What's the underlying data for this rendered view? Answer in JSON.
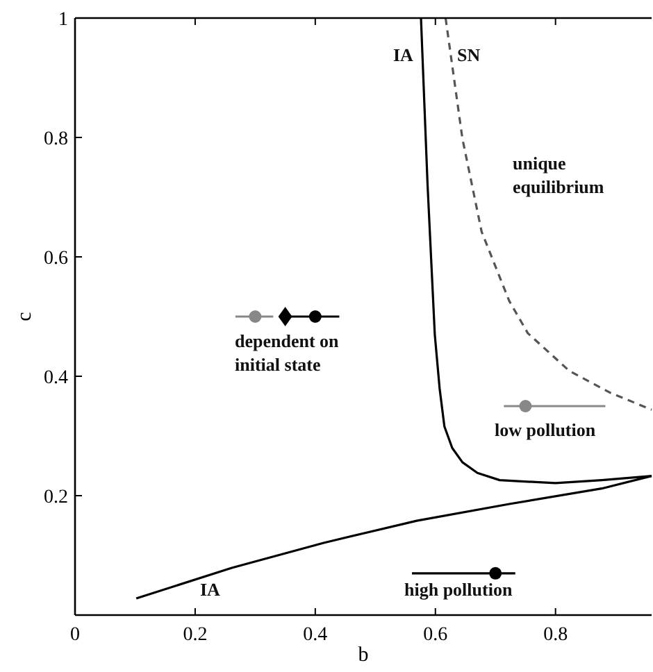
{
  "chart_data": {
    "type": "line",
    "xlabel": "b",
    "ylabel": "c",
    "xlim": [
      0,
      0.96
    ],
    "ylim": [
      0,
      1
    ],
    "xticks": [
      0,
      0.2,
      0.4,
      0.6,
      0.8
    ],
    "yticks": [
      0.2,
      0.4,
      0.6,
      0.8,
      1
    ],
    "series": [
      {
        "color": "#000000",
        "line_style": "solid",
        "x": [
          0.576,
          0.587,
          0.599,
          0.607,
          0.615,
          0.628,
          0.645,
          0.67,
          0.707,
          0.8,
          0.877,
          0.96
        ],
        "values": [
          1.0,
          0.72,
          0.47,
          0.38,
          0.316,
          0.28,
          0.256,
          0.238,
          0.226,
          0.221,
          0.226,
          0.233
        ]
      },
      {
        "color": "#000000",
        "line_style": "solid",
        "x": [
          0.102,
          0.261,
          0.414,
          0.569,
          0.723,
          0.877,
          0.96
        ],
        "values": [
          0.028,
          0.079,
          0.121,
          0.158,
          0.186,
          0.212,
          0.233
        ]
      },
      {
        "color": "#555555",
        "line_style": "dashed",
        "x": [
          0.617,
          0.645,
          0.677,
          0.723,
          0.754,
          0.823,
          0.892,
          0.96
        ],
        "values": [
          1.0,
          0.798,
          0.642,
          0.526,
          0.472,
          0.409,
          0.372,
          0.344
        ]
      },
      {
        "type": "scatter",
        "color": "#888888",
        "marker": "circle",
        "x": [
          0.3,
          0.75
        ],
        "values": [
          0.5,
          0.35
        ],
        "xerrors": [
          [
            0.267,
            0.33
          ],
          [
            0.714,
            0.883
          ]
        ]
      },
      {
        "type": "scatter",
        "color": "#000000",
        "marker": "circle",
        "x": [
          0.4,
          0.7
        ],
        "values": [
          0.5,
          0.07
        ],
        "xerrors": [
          [
            0.35,
            0.44
          ],
          [
            0.561,
            0.733
          ]
        ]
      },
      {
        "type": "scatter",
        "color": "#000000",
        "marker": "diamond",
        "x": [
          0.35
        ],
        "values": [
          0.5
        ]
      }
    ],
    "annotations": [
      "IA",
      "SN",
      "unique\nequilibrium",
      "dependent on\ninitial state",
      "low pollution",
      "high pollution",
      "IA"
    ]
  }
}
